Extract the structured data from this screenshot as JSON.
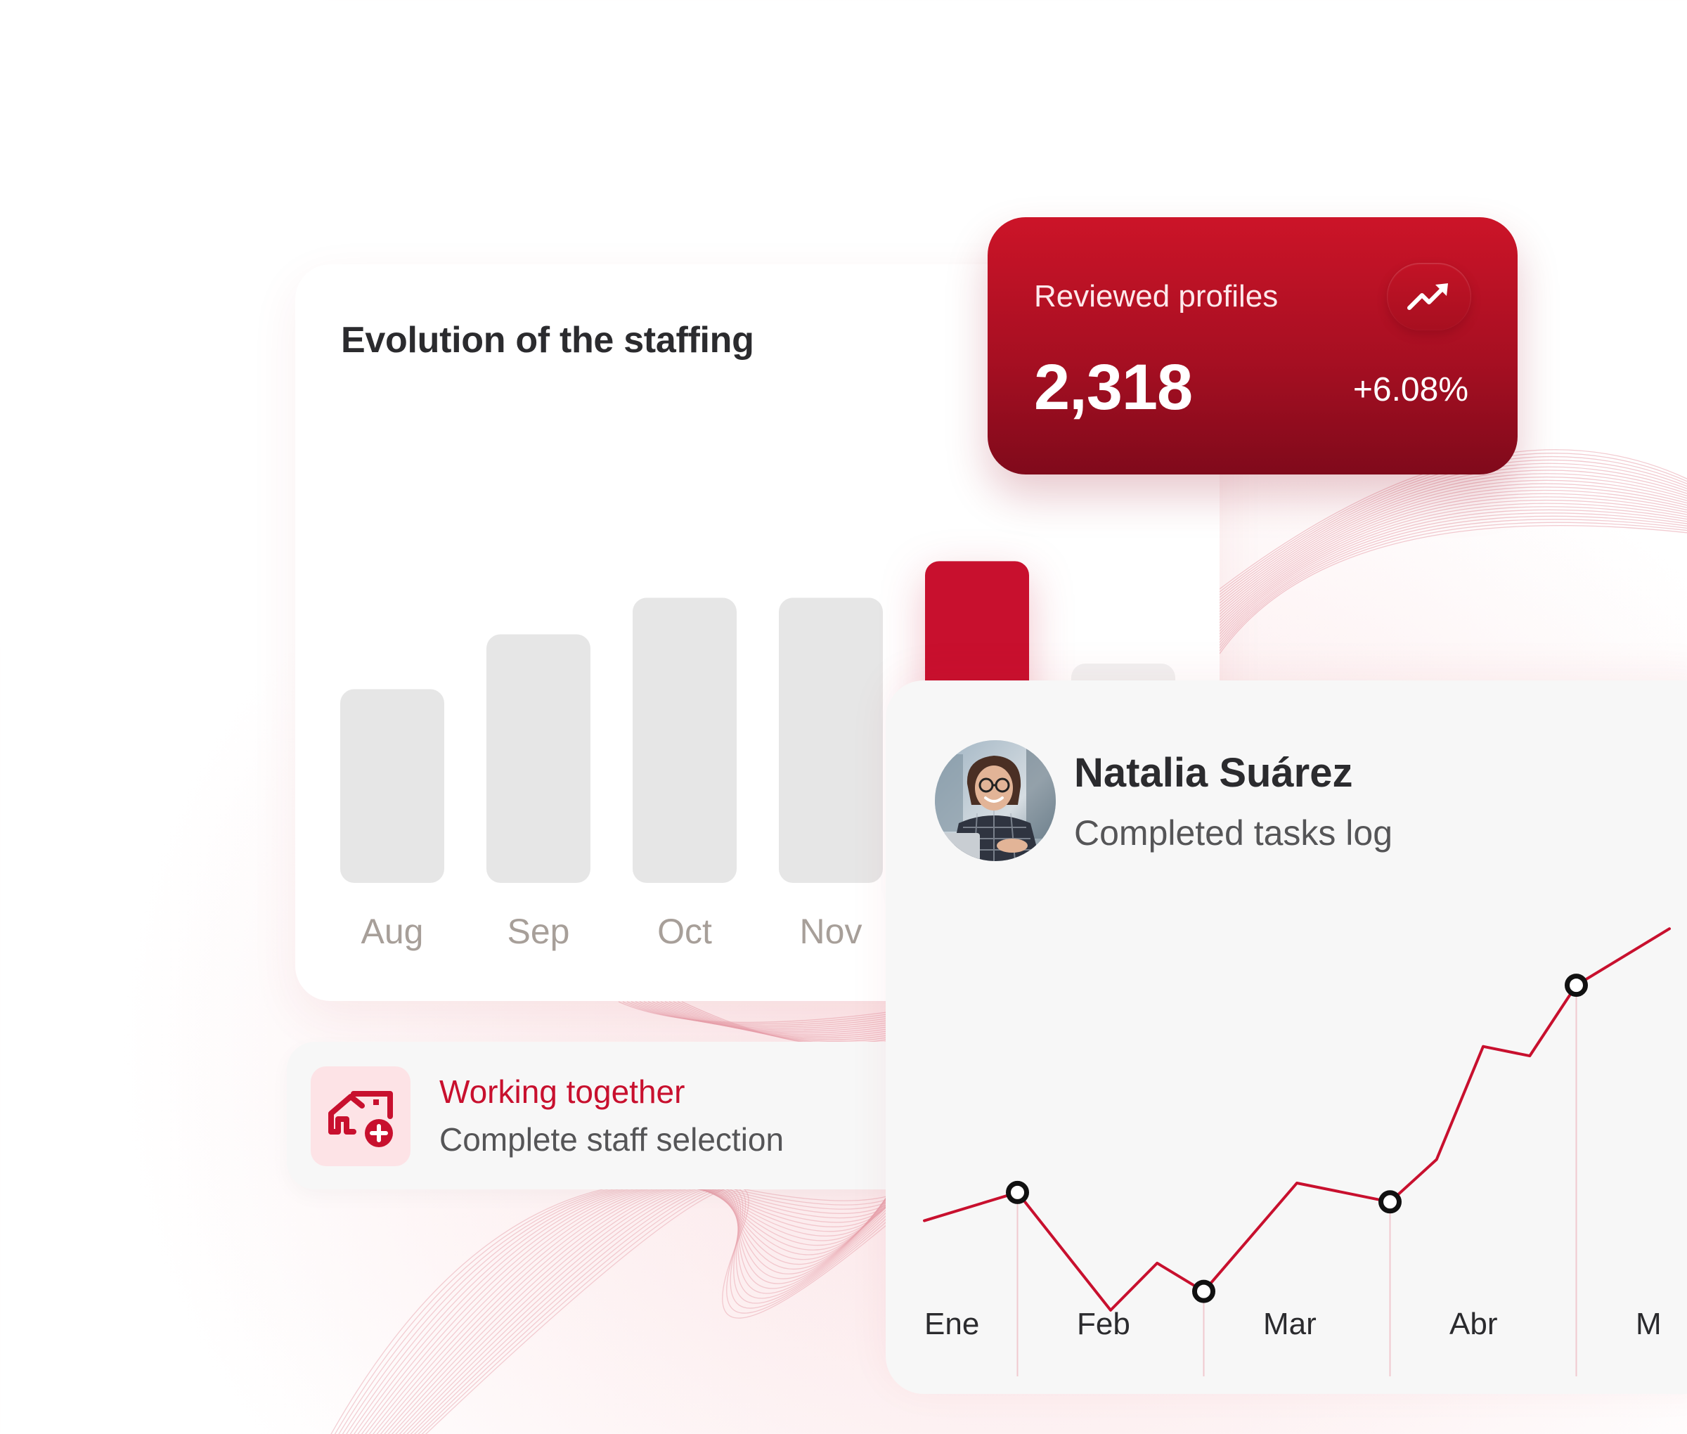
{
  "colors": {
    "accent": "#c8102e",
    "bar_inactive": "#e6e6e6",
    "bar_faded": "#f1f1f1",
    "line": "#c8102e"
  },
  "staffing_card": {
    "title": "Evolution of the staffing"
  },
  "reviewed_card": {
    "label": "Reviewed profiles",
    "value": "2,318",
    "delta": "+6.08%",
    "icon": "trending-up-icon"
  },
  "working_card": {
    "title": "Working together",
    "subtitle": "Complete staff selection",
    "icon": "house-add-icon"
  },
  "natalia_card": {
    "name": "Natalia Suárez",
    "subtitle": "Completed tasks log"
  },
  "chart_data": [
    {
      "type": "bar",
      "title": "Evolution of the staffing",
      "categories": [
        "Aug",
        "Sep",
        "Oct",
        "Nov",
        "",
        ""
      ],
      "values": [
        5.3,
        6.8,
        7.8,
        7.8,
        8.8,
        6.0
      ],
      "highlight_index": 4,
      "faded_index": 5,
      "ylim": [
        0,
        10
      ],
      "grid": false
    },
    {
      "type": "line",
      "title": "Completed tasks log",
      "categories": [
        "Ene",
        "Feb",
        "Mar",
        "Abr",
        "M"
      ],
      "x": [
        0,
        0.5,
        1,
        1.25,
        1.5,
        2,
        2.5,
        2.75,
        3,
        3.25,
        3.5,
        4
      ],
      "values": [
        4.2,
        4.8,
        2.3,
        3.3,
        2.7,
        5.0,
        4.6,
        5.5,
        7.9,
        7.7,
        9.2,
        10.4
      ],
      "markers_x": [
        0.5,
        1.5,
        2.5,
        3.5
      ],
      "ylim": [
        0,
        11
      ],
      "grid": false
    }
  ]
}
